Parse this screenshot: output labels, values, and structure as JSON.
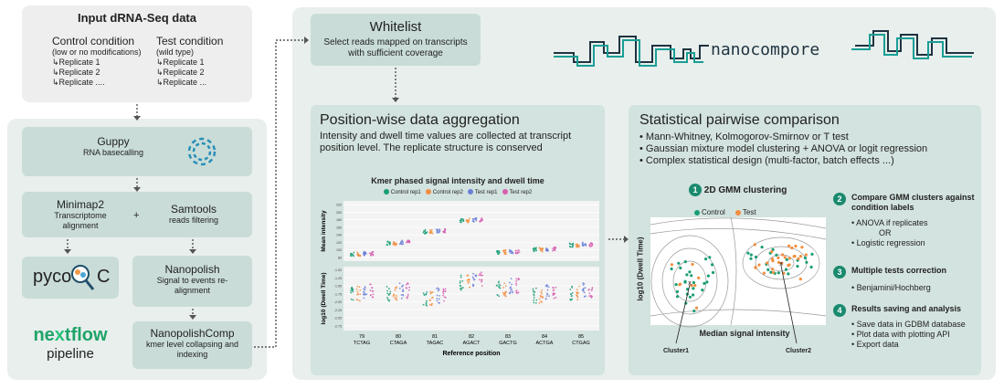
{
  "input": {
    "title": "Input dRNA-Seq data",
    "control_title": "Control condition",
    "control_sub": "(low or no modifications)",
    "control_reps": [
      "↳Replicate 1",
      "↳Replicate 2",
      "↳Replicate ...."
    ],
    "test_title": "Test condition",
    "test_sub": "(wild type)",
    "test_reps": [
      "↳Replicate 1",
      "↳Replicate 2",
      "↳Replicate ..."
    ]
  },
  "pipeline": {
    "guppy_title": "Guppy",
    "guppy_sub": "RNA basecalling",
    "minimap_title": "Minimap2",
    "minimap_sub": "Transcriptome alignment",
    "plus": "+",
    "samtools_title": "Samtools",
    "samtools_sub": "reads filtering",
    "pycoqc_prefix": "pyco",
    "pycoqc_suffix": "C",
    "nanopolish_title": "Nanopolish",
    "nanopolish_sub": "Signal to events re-alignment",
    "nanopolishcomp_title": "NanopolishComp",
    "nanopolishcomp_sub": "kmer level collapsing and indexing",
    "nextflow_a": "ne",
    "nextflow_x": "x",
    "nextflow_b": "tflow",
    "nextflow_sub": "pipeline"
  },
  "whitelist": {
    "title": "Whitelist",
    "sub": "Select reads mapped on transcripts with sufficient coverage"
  },
  "logo": {
    "text": "nanocompore"
  },
  "aggregation": {
    "title": "Position-wise data aggregation",
    "sub": "Intensity and dwell time values are collected at transcript position level. The replicate structure is conserved"
  },
  "stats": {
    "title": "Statistical pairwise comparison",
    "bullets": [
      "• Mann-Whitney, Kolmogorov-Smirnov or T test",
      "• Gaussian mixture model clustering + ANOVA or logit regression",
      "• Complex statistical design (multi-factor, batch effects ...)"
    ],
    "gmm_num": "1",
    "gmm_title": "2D GMM clustering",
    "legend_control": "Control",
    "legend_test": "Test",
    "ylabel": "log10 (Dwell Time)",
    "xlabel": "Median signal intensity",
    "cluster1": "Cluster1",
    "cluster2": "Cluster2",
    "steps": [
      {
        "num": "2",
        "title": "Compare GMM clusters against condition labels",
        "items": [
          "• ANOVA if replicates",
          "OR",
          "• Logistic regression"
        ]
      },
      {
        "num": "3",
        "title": "Multiple tests correction",
        "items": [
          "• Benjamini/Hochberg"
        ]
      },
      {
        "num": "4",
        "title": "Results saving and analysis",
        "items": [
          "• Save data in GDBM database",
          "• Plot data with plotting API",
          "• Export data"
        ]
      }
    ]
  },
  "colors": {
    "control": "#1a9e77",
    "test": "#f28e3f",
    "accent": "#1a8a6e"
  },
  "chart_data": {
    "type": "scatter",
    "title": "Kmer phased signal intensity and dwell time",
    "legend": [
      "Control rep1",
      "Control rep2",
      "Test rep1",
      "Test rep2"
    ],
    "legend_colors": [
      "#1a9e77",
      "#f28e3f",
      "#6b7fd7",
      "#d65fb0"
    ],
    "xlabel": "Reference position",
    "positions": [
      "79",
      "80",
      "81",
      "82",
      "83",
      "84",
      "85"
    ],
    "kmers": [
      "TCTAG",
      "CTAGA",
      "TAGAC",
      "AGACT",
      "GACTG",
      "ACTGA",
      "CTGAG"
    ],
    "panels": [
      {
        "ylabel": "Mean intensity",
        "yticks": [
          "220",
          "200",
          "180",
          "160",
          "140",
          "120",
          "100",
          "80"
        ],
        "ylim": [
          70,
          230
        ],
        "means": [
          88,
          118,
          148,
          178,
          94,
          100,
          112
        ]
      },
      {
        "ylabel": "log10 (Dwell Time)",
        "yticks": [
          "-1.00",
          "-1.25",
          "-1.50",
          "-1.75",
          "-2.00",
          "-2.25",
          "-2.50",
          "-2.75"
        ],
        "ylim": [
          -2.9,
          -0.9
        ],
        "means": [
          -1.75,
          -1.75,
          -1.9,
          -1.4,
          -1.6,
          -1.8,
          -1.75
        ]
      }
    ]
  }
}
